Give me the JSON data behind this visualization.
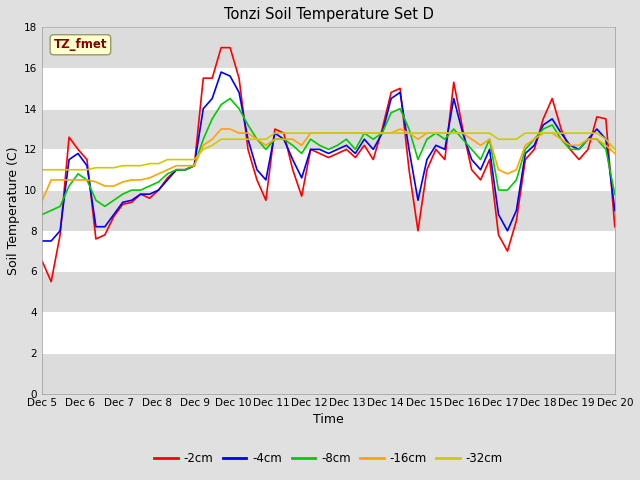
{
  "title": "Tonzi Soil Temperature Set D",
  "xlabel": "Time",
  "ylabel": "Soil Temperature (C)",
  "annotation": "TZ_fmet",
  "annotation_color": "#8B0000",
  "annotation_bg": "#FFFFD0",
  "ylim": [
    0,
    18
  ],
  "yticks": [
    0,
    2,
    4,
    6,
    8,
    10,
    12,
    14,
    16,
    18
  ],
  "x_labels": [
    "Dec 5",
    "Dec 6",
    "Dec 7",
    "Dec 8",
    "Dec 9",
    "Dec 10",
    "Dec 11",
    "Dec 12",
    "Dec 13",
    "Dec 14",
    "Dec 15",
    "Dec 16",
    "Dec 17",
    "Dec 18",
    "Dec 19",
    "Dec 20"
  ],
  "series_order": [
    "-2cm",
    "-4cm",
    "-8cm",
    "-16cm",
    "-32cm"
  ],
  "series": {
    "-2cm": {
      "color": "#FF0000",
      "lw": 1.2
    },
    "-4cm": {
      "color": "#0000FF",
      "lw": 1.2
    },
    "-8cm": {
      "color": "#00CC00",
      "lw": 1.2
    },
    "-16cm": {
      "color": "#FFA500",
      "lw": 1.2
    },
    "-32cm": {
      "color": "#CCCC00",
      "lw": 1.2
    }
  },
  "bg_color": "#E0E0E0",
  "plot_bg_light": "#FFFFFF",
  "plot_bg_dark": "#DCDCDC",
  "grid_color": "#FFFFFF",
  "data": {
    "-2cm": [
      6.5,
      5.5,
      7.8,
      12.6,
      12.0,
      11.5,
      7.6,
      7.8,
      8.7,
      9.3,
      9.4,
      9.8,
      9.6,
      10.0,
      10.6,
      11.0,
      11.0,
      11.2,
      15.5,
      15.5,
      17.0,
      17.0,
      15.5,
      12.0,
      10.5,
      9.5,
      13.0,
      12.8,
      11.0,
      9.7,
      12.0,
      11.8,
      11.6,
      11.8,
      12.0,
      11.6,
      12.2,
      11.5,
      13.0,
      14.8,
      15.0,
      11.0,
      8.0,
      11.0,
      12.0,
      11.5,
      15.3,
      13.0,
      11.0,
      10.5,
      11.5,
      7.8,
      7.0,
      8.5,
      11.5,
      12.0,
      13.5,
      14.5,
      13.0,
      12.0,
      11.5,
      12.0,
      13.6,
      13.5,
      8.2
    ],
    "-4cm": [
      7.5,
      7.5,
      8.0,
      11.5,
      11.8,
      11.2,
      8.2,
      8.2,
      8.8,
      9.4,
      9.5,
      9.8,
      9.8,
      10.0,
      10.5,
      11.0,
      11.0,
      11.2,
      14.0,
      14.5,
      15.8,
      15.6,
      14.8,
      12.5,
      11.0,
      10.5,
      12.8,
      12.5,
      11.5,
      10.6,
      12.0,
      12.0,
      11.8,
      12.0,
      12.2,
      11.8,
      12.5,
      12.0,
      12.8,
      14.5,
      14.8,
      12.0,
      9.5,
      11.5,
      12.2,
      12.0,
      14.5,
      12.8,
      11.5,
      11.0,
      12.0,
      8.8,
      8.0,
      9.0,
      11.8,
      12.2,
      13.2,
      13.5,
      12.8,
      12.2,
      12.0,
      12.5,
      13.0,
      12.5,
      9.0
    ],
    "-8cm": [
      8.8,
      9.0,
      9.2,
      10.2,
      10.8,
      10.5,
      9.5,
      9.2,
      9.5,
      9.8,
      10.0,
      10.0,
      10.2,
      10.4,
      10.8,
      11.0,
      11.0,
      11.2,
      12.5,
      13.5,
      14.2,
      14.5,
      14.0,
      13.2,
      12.5,
      12.0,
      12.5,
      12.5,
      12.2,
      11.8,
      12.5,
      12.2,
      12.0,
      12.2,
      12.5,
      12.0,
      12.8,
      12.5,
      12.8,
      13.8,
      14.0,
      13.0,
      11.5,
      12.5,
      12.8,
      12.5,
      13.0,
      12.5,
      12.0,
      11.5,
      12.5,
      10.0,
      10.0,
      10.5,
      12.0,
      12.5,
      13.0,
      13.2,
      12.5,
      12.0,
      12.0,
      12.5,
      12.5,
      12.0,
      9.8
    ],
    "-16cm": [
      9.5,
      10.5,
      10.5,
      10.5,
      10.5,
      10.5,
      10.4,
      10.2,
      10.2,
      10.4,
      10.5,
      10.5,
      10.6,
      10.8,
      11.0,
      11.2,
      11.2,
      11.2,
      12.2,
      12.5,
      13.0,
      13.0,
      12.8,
      12.8,
      12.5,
      12.2,
      12.5,
      12.5,
      12.5,
      12.2,
      12.8,
      12.8,
      12.8,
      12.8,
      12.8,
      12.8,
      12.8,
      12.8,
      12.8,
      12.8,
      13.0,
      12.8,
      12.5,
      12.8,
      12.8,
      12.8,
      12.8,
      12.8,
      12.5,
      12.2,
      12.5,
      11.0,
      10.8,
      11.0,
      12.2,
      12.5,
      12.8,
      12.8,
      12.5,
      12.2,
      12.2,
      12.5,
      12.5,
      12.2,
      11.8
    ],
    "-32cm": [
      11.0,
      11.0,
      11.0,
      11.0,
      11.0,
      11.0,
      11.1,
      11.1,
      11.1,
      11.2,
      11.2,
      11.2,
      11.3,
      11.3,
      11.5,
      11.5,
      11.5,
      11.5,
      12.0,
      12.2,
      12.5,
      12.5,
      12.5,
      12.5,
      12.5,
      12.5,
      12.8,
      12.8,
      12.8,
      12.8,
      12.8,
      12.8,
      12.8,
      12.8,
      12.8,
      12.8,
      12.8,
      12.8,
      12.8,
      12.8,
      12.8,
      12.8,
      12.8,
      12.8,
      12.8,
      12.8,
      12.8,
      12.8,
      12.8,
      12.8,
      12.8,
      12.5,
      12.5,
      12.5,
      12.8,
      12.8,
      12.8,
      12.8,
      12.8,
      12.8,
      12.8,
      12.8,
      12.8,
      12.5,
      12.0
    ]
  }
}
